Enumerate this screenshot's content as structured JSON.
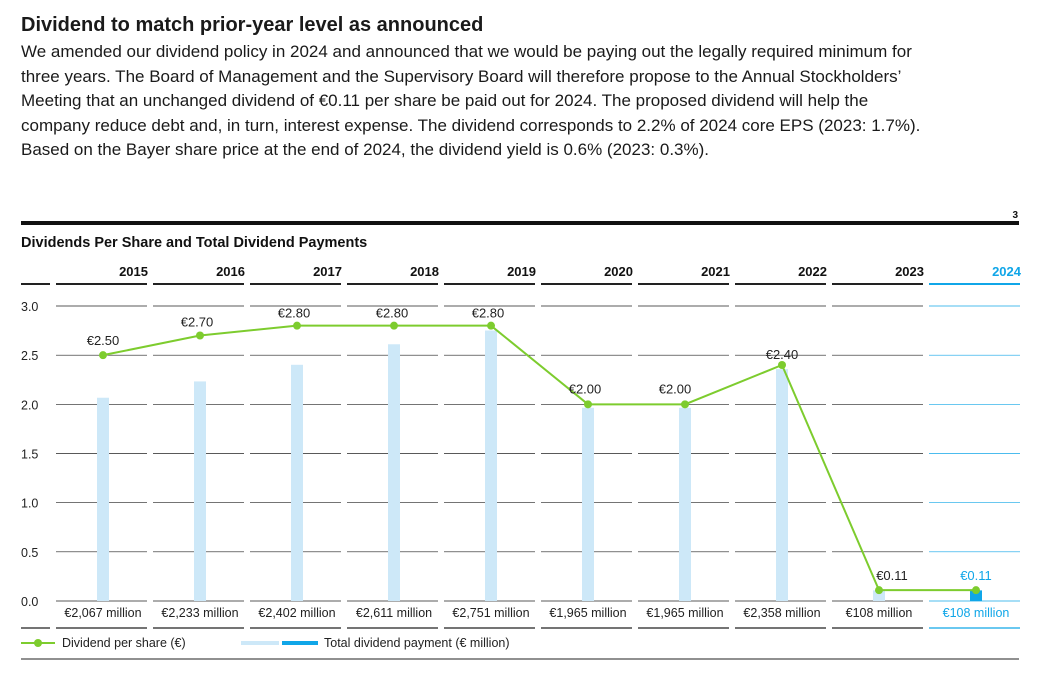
{
  "article": {
    "headline": "Dividend to match prior-year level as announced",
    "body": "We amended our dividend policy in 2024 and announced that we would be paying out the legally required minimum for three years. The Board of Management and the Supervisory Board will therefore propose to the Annual Stockholders’ Meeting that an unchanged dividend of €0.11 per share be paid out for 2024. The proposed dividend will help the company reduce debt and, in turn, interest expense. The dividend corresponds to 2.2% of 2024 core EPS (2023: 1.7%). Based on the Bayer share price at the end of 2024, the dividend yield is 0.6% (2023: 0.3%)."
  },
  "figure_number": "3",
  "colors": {
    "line": "#7dcc2e",
    "bar": "#cde8f8",
    "bar_highlight": "#10a6e8",
    "highlight_text": "#10a6e8",
    "rule": "#111111",
    "grid": "#222222",
    "grid_highlight": "#10a6e8"
  },
  "chart_data": {
    "type": "bar",
    "title": "Dividends Per Share and Total Dividend Payments",
    "categories": [
      "2015",
      "2016",
      "2017",
      "2018",
      "2019",
      "2020",
      "2021",
      "2022",
      "2023",
      "2024"
    ],
    "highlight_category": "2024",
    "ylim": [
      0,
      3.0
    ],
    "yticks": [
      "0.0",
      "0.5",
      "1.0",
      "1.5",
      "2.0",
      "2.5",
      "3.0"
    ],
    "grid": true,
    "series": [
      {
        "name": "Dividend per share (€)",
        "type": "line",
        "values": [
          2.5,
          2.7,
          2.8,
          2.8,
          2.8,
          2.0,
          2.0,
          2.4,
          0.11,
          0.11
        ],
        "labels": [
          "€2.50",
          "€2.70",
          "€2.80",
          "€2.80",
          "€2.80",
          "€2.00",
          "€2.00",
          "€2.40",
          "€0.11",
          "€0.11"
        ]
      },
      {
        "name": "Total dividend payment (€ million)",
        "type": "bar",
        "values": [
          2067,
          2233,
          2402,
          2611,
          2751,
          1965,
          1965,
          2358,
          108,
          108
        ],
        "labels": [
          "€2,067 million",
          "€2,233 million",
          "€2,402 million",
          "€2,611 million",
          "€2,751 million",
          "€1,965 million",
          "€1,965 million",
          "€2,358 million",
          "€108 million",
          "€108 million"
        ]
      }
    ],
    "legend_position": "bottom-left"
  }
}
